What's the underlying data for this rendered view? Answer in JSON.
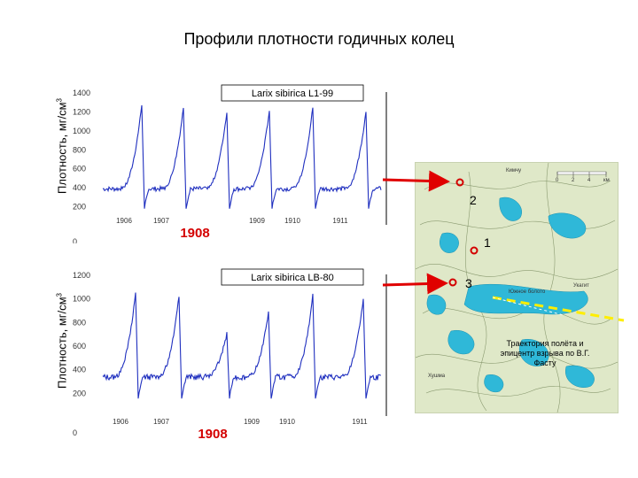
{
  "title": "Профили плотности годичных колец",
  "ylabel_main": "Плотность, мг/см",
  "ylabel_sup": "3",
  "highlight_color": "#d40000",
  "series_color": "#1f2fbf",
  "chart_data": [
    {
      "type": "line",
      "series_label": "Larix sibirica  L1-99",
      "yticks": [
        0,
        200,
        400,
        600,
        800,
        1000,
        1200,
        1400
      ],
      "ylim": [
        0,
        1400
      ],
      "year_labels": [
        "1906",
        "1907",
        "1908",
        "1909",
        "1910",
        "1911"
      ],
      "highlight_year": "1908",
      "baseline": 380,
      "peaks": [
        1270,
        1240,
        1190,
        1210,
        1240,
        1200
      ],
      "grid": false
    },
    {
      "type": "line",
      "series_label": "Larix sibirica  LB-80",
      "yticks": [
        0,
        200,
        400,
        600,
        800,
        1000,
        1200
      ],
      "ylim": [
        0,
        1200
      ],
      "year_labels": [
        "1906",
        "1907",
        "1908",
        "1909",
        "1910",
        "1911"
      ],
      "highlight_year": "1908",
      "baseline": 330,
      "peaks": [
        1040,
        1020,
        700,
        880,
        1020,
        980
      ],
      "grid": false
    }
  ],
  "map": {
    "labels": {
      "top": "Кимчу",
      "swamp": "Южное болото",
      "right": "Укагит",
      "bottom": "Хушма"
    },
    "scale_ticks": [
      "0",
      "2",
      "4",
      "км"
    ],
    "markers": [
      "2",
      "1",
      "3"
    ],
    "trajectory_note": "Траектория полёта и эпицентр взрыва по В.Г. Фасту"
  }
}
